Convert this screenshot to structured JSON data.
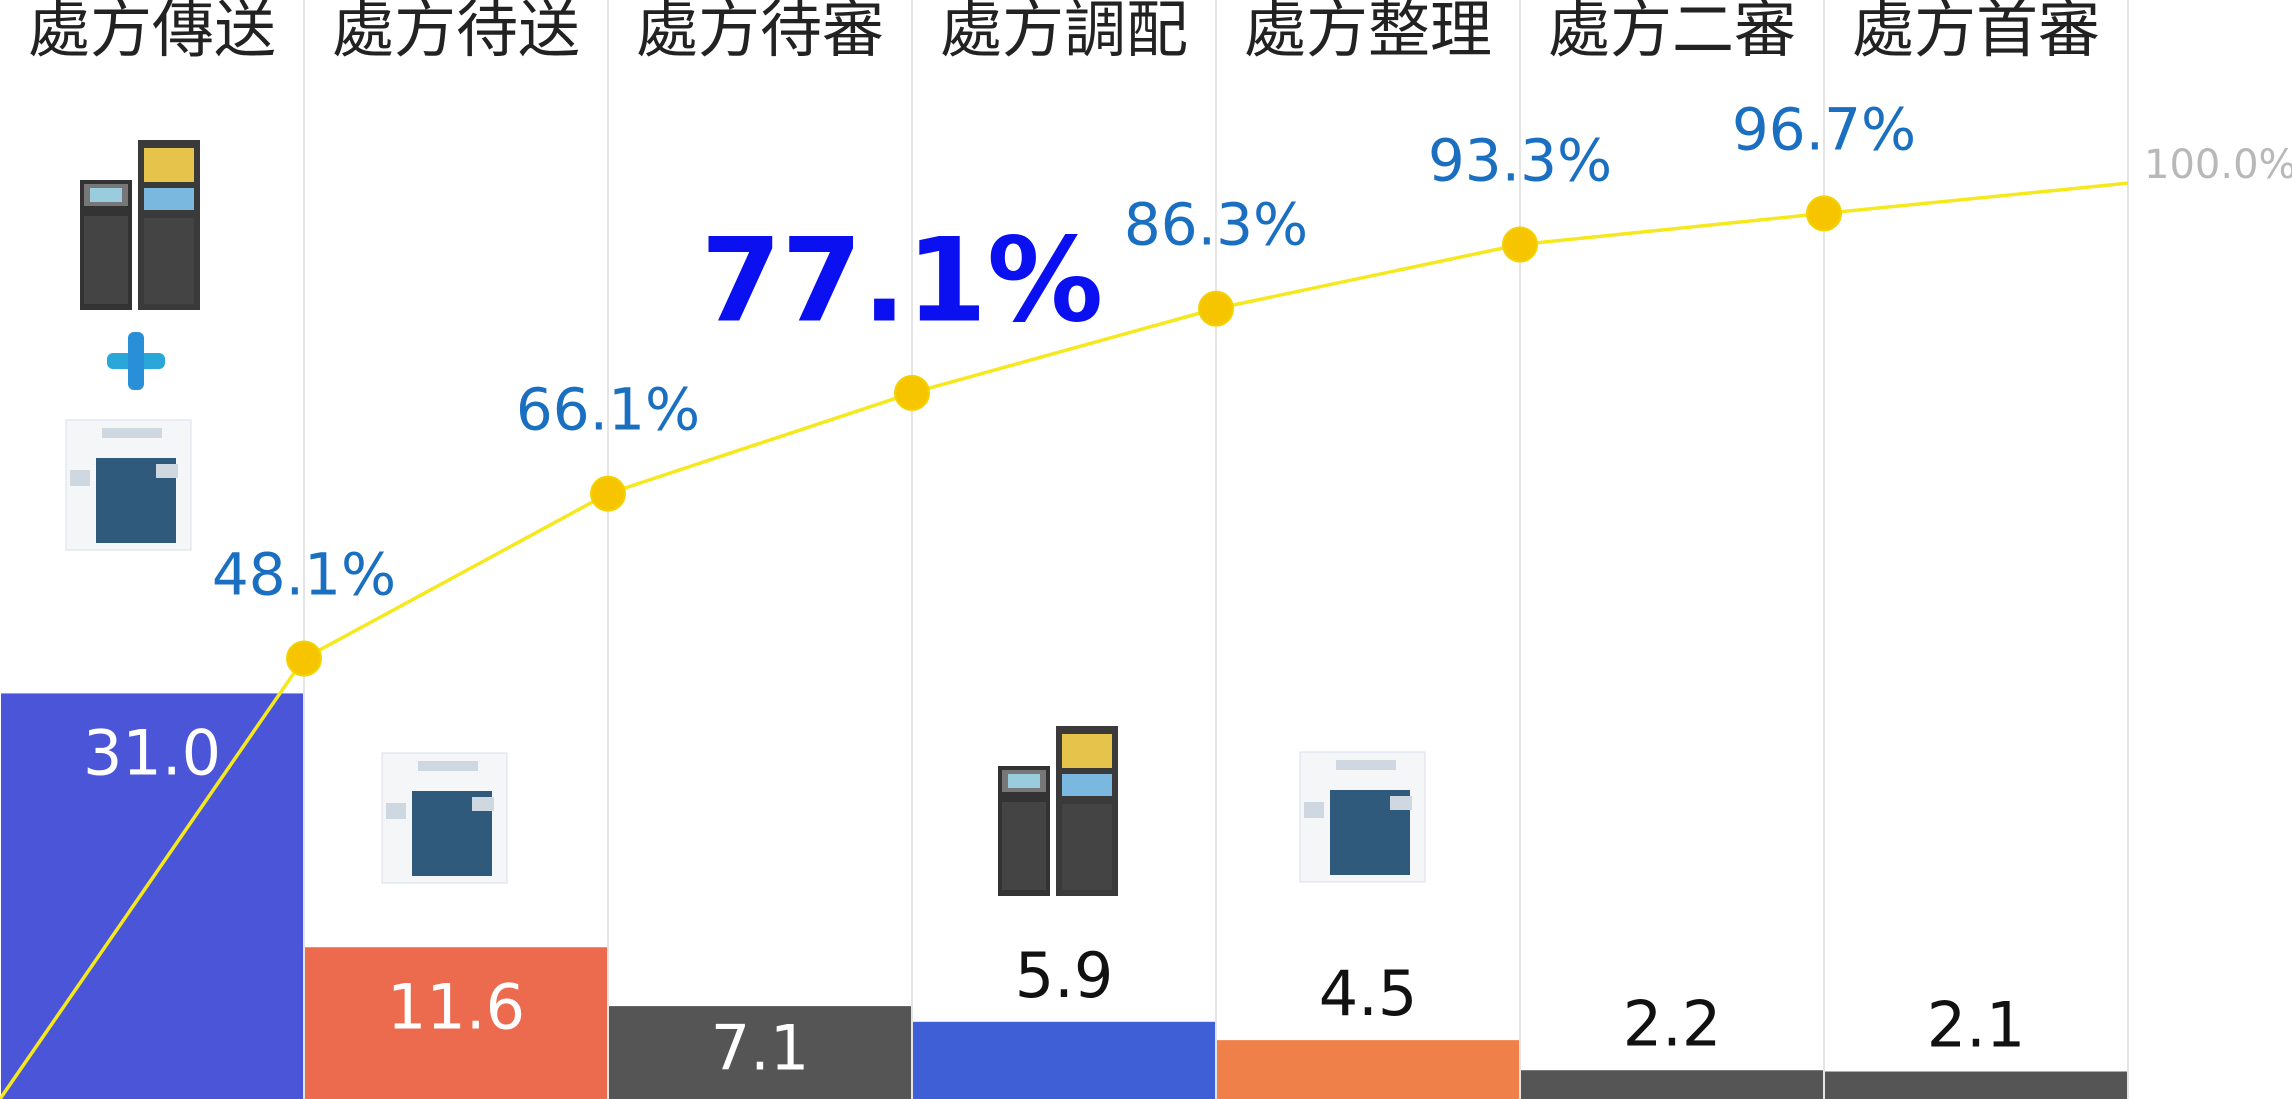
{
  "chart_data": {
    "type": "pareto",
    "categories": [
      "處方傳送",
      "處方待送",
      "處方待審",
      "處方調配",
      "處方整理",
      "處方二審",
      "處方首審"
    ],
    "values": [
      31.0,
      11.6,
      7.1,
      5.9,
      4.5,
      2.2,
      2.1
    ],
    "value_labels": [
      "31.0",
      "11.6",
      "7.1",
      "5.9",
      "4.5",
      "2.2",
      "2.1"
    ],
    "bar_colors": [
      "#4a55d8",
      "#ec6a4e",
      "#555555",
      "#3f5fd6",
      "#f0804a",
      "#555555",
      "#555555"
    ],
    "ylim": [
      0,
      84
    ],
    "cumulative": {
      "axis": "y2",
      "values": [
        48.1,
        66.1,
        77.1,
        86.3,
        93.3,
        96.7,
        100.0
      ],
      "value_labels": [
        "48.1%",
        "66.1%",
        "77.1%",
        "86.3%",
        "93.3%",
        "96.7%",
        "100.0%"
      ],
      "color": "#f5e81c",
      "marker_color": "#f7c400",
      "label_color": "#1a6fc0",
      "highlight_color": "#0a10f0",
      "final_label_color": "#b8b8b8",
      "highlight": 2
    },
    "y2lim": [
      0,
      120
    ]
  }
}
